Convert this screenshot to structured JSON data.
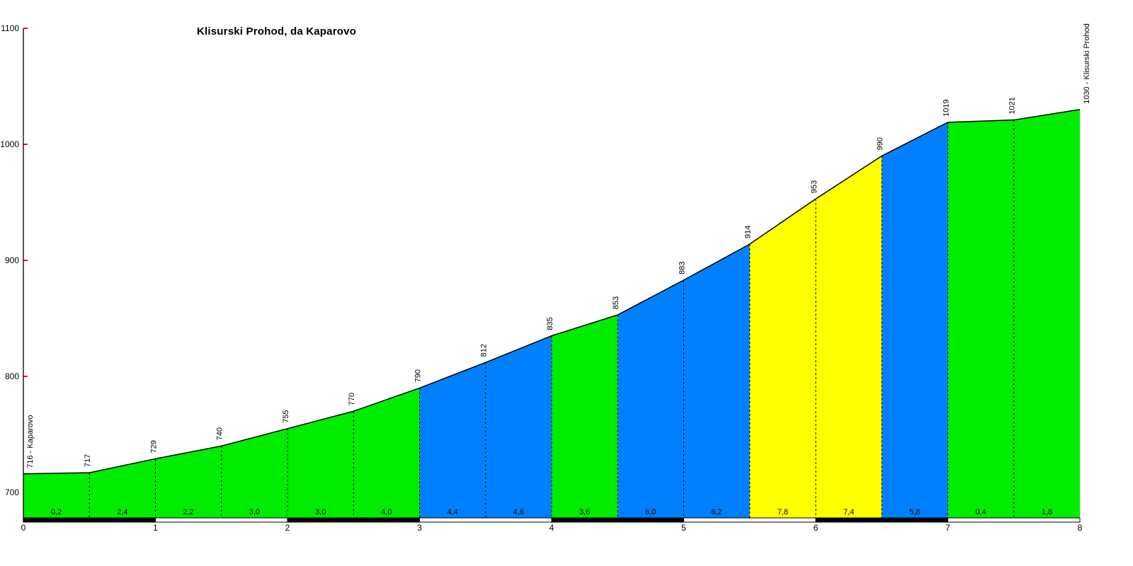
{
  "page": {
    "background_color": "#FFFFFF"
  },
  "chart_data": {
    "type": "area",
    "title": "Klisurski Prohod, da Kaparovo",
    "x_unit": "km",
    "y_unit": "m",
    "xlim": [
      0,
      8
    ],
    "ylim": [
      678,
      1100
    ],
    "x_ticks": [
      0,
      1,
      2,
      3,
      4,
      5,
      6,
      7,
      8
    ],
    "y_ticks": [
      700,
      800,
      900,
      1000,
      1100
    ],
    "grid": "dashed vertical line at every half km",
    "legend_position": "none",
    "start_point_label": "716 - Kaparovo",
    "end_point_label": "1030 - Klisurski Prohod",
    "points": [
      {
        "km": 0.0,
        "elevation": 716,
        "label": "716 - Kaparovo"
      },
      {
        "km": 0.5,
        "elevation": 717,
        "label": "717"
      },
      {
        "km": 1.0,
        "elevation": 729,
        "label": "729"
      },
      {
        "km": 1.5,
        "elevation": 740,
        "label": "740"
      },
      {
        "km": 2.0,
        "elevation": 755,
        "label": "755"
      },
      {
        "km": 2.5,
        "elevation": 770,
        "label": "770"
      },
      {
        "km": 3.0,
        "elevation": 790,
        "label": "790"
      },
      {
        "km": 3.5,
        "elevation": 812,
        "label": "812"
      },
      {
        "km": 4.0,
        "elevation": 835,
        "label": "835"
      },
      {
        "km": 4.5,
        "elevation": 853,
        "label": "853"
      },
      {
        "km": 5.0,
        "elevation": 883,
        "label": "883"
      },
      {
        "km": 5.5,
        "elevation": 914,
        "label": "914"
      },
      {
        "km": 6.0,
        "elevation": 953,
        "label": "953"
      },
      {
        "km": 6.5,
        "elevation": 990,
        "label": "990"
      },
      {
        "km": 7.0,
        "elevation": 1019,
        "label": "1019"
      },
      {
        "km": 7.5,
        "elevation": 1021,
        "label": "1021"
      },
      {
        "km": 8.0,
        "elevation": 1030,
        "label": "1030 - Klisurski Prohod"
      }
    ],
    "segments": [
      {
        "from_km": 0.0,
        "to_km": 0.5,
        "gradient_label": "0,2",
        "color_key": "green"
      },
      {
        "from_km": 0.5,
        "to_km": 1.0,
        "gradient_label": "2,4",
        "color_key": "green"
      },
      {
        "from_km": 1.0,
        "to_km": 1.5,
        "gradient_label": "2,2",
        "color_key": "green"
      },
      {
        "from_km": 1.5,
        "to_km": 2.0,
        "gradient_label": "3,0",
        "color_key": "green"
      },
      {
        "from_km": 2.0,
        "to_km": 2.5,
        "gradient_label": "3,0",
        "color_key": "green"
      },
      {
        "from_km": 2.5,
        "to_km": 3.0,
        "gradient_label": "4,0",
        "color_key": "green"
      },
      {
        "from_km": 3.0,
        "to_km": 3.5,
        "gradient_label": "4,4",
        "color_key": "blue"
      },
      {
        "from_km": 3.5,
        "to_km": 4.0,
        "gradient_label": "4,6",
        "color_key": "blue"
      },
      {
        "from_km": 4.0,
        "to_km": 4.5,
        "gradient_label": "3,6",
        "color_key": "green"
      },
      {
        "from_km": 4.5,
        "to_km": 5.0,
        "gradient_label": "6,0",
        "color_key": "blue"
      },
      {
        "from_km": 5.0,
        "to_km": 5.5,
        "gradient_label": "6,2",
        "color_key": "blue"
      },
      {
        "from_km": 5.5,
        "to_km": 6.0,
        "gradient_label": "7,8",
        "color_key": "yellow"
      },
      {
        "from_km": 6.0,
        "to_km": 6.5,
        "gradient_label": "7,4",
        "color_key": "yellow"
      },
      {
        "from_km": 6.5,
        "to_km": 7.0,
        "gradient_label": "5,8",
        "color_key": "blue"
      },
      {
        "from_km": 7.0,
        "to_km": 7.5,
        "gradient_label": "0,4",
        "color_key": "green"
      },
      {
        "from_km": 7.5,
        "to_km": 8.0,
        "gradient_label": "1,8",
        "color_key": "green"
      }
    ],
    "palette": {
      "green": "#00EC00",
      "blue": "#0080FF",
      "yellow": "#FFFF00"
    },
    "colors": {
      "profile_line": "#000000",
      "axis_line": "#000000",
      "y_tick_mark": "#FF0000",
      "text": "#000000",
      "km_bar_black": "#000000",
      "km_bar_white": "#FFFFFF"
    },
    "km_bar_pattern": [
      "black",
      "white",
      "black",
      "white",
      "black",
      "white",
      "black",
      "white"
    ]
  }
}
